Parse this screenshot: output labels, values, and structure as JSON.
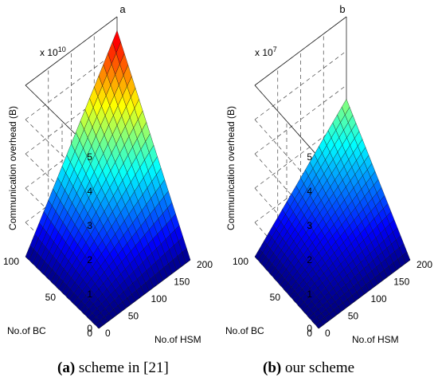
{
  "panels": [
    {
      "panel_label": "a",
      "exponent_text": "x 10",
      "exponent_sup": "10",
      "ylabel": "Communication overhead (B)",
      "x1label": "No.of BC",
      "x2label": "No.of HSM",
      "x1ticks": [
        "100",
        "50",
        "0"
      ],
      "x2ticks": [
        "200",
        "150",
        "100",
        "50",
        "0"
      ],
      "zticks": [
        "0",
        "1",
        "2",
        "3",
        "4",
        "5"
      ],
      "caption_bold": "(a)",
      "caption_text": " scheme in [21]"
    },
    {
      "panel_label": "b",
      "exponent_text": "x 10",
      "exponent_sup": "7",
      "ylabel": "Communication overhead (B)",
      "x1label": "No.of BC",
      "x2label": "No.of HSM",
      "x1ticks": [
        "100",
        "50",
        "0"
      ],
      "x2ticks": [
        "200",
        "150",
        "100",
        "50",
        "0"
      ],
      "zticks": [
        "0",
        "1",
        "2",
        "3",
        "4",
        "5"
      ],
      "caption_bold": "(b)",
      "caption_text": " our scheme"
    }
  ],
  "chart_data": [
    {
      "type": "surface",
      "x_name": "No.of BC",
      "y_name": "No.of HSM",
      "z_name": "Communication overhead (B)",
      "xlim": [
        0,
        100
      ],
      "ylim": [
        0,
        200
      ],
      "zlim": [
        0,
        5
      ],
      "z_scale": "x 10^10",
      "surface_max": 4.6,
      "colormap": "jet",
      "grid": true
    },
    {
      "type": "surface",
      "x_name": "No.of BC",
      "y_name": "No.of HSM",
      "z_name": "Communication overhead (B)",
      "xlim": [
        0,
        100
      ],
      "ylim": [
        0,
        200
      ],
      "zlim": [
        0,
        5
      ],
      "z_scale": "x 10^7",
      "surface_max": 2.6,
      "colormap": "jet",
      "grid": true
    }
  ]
}
